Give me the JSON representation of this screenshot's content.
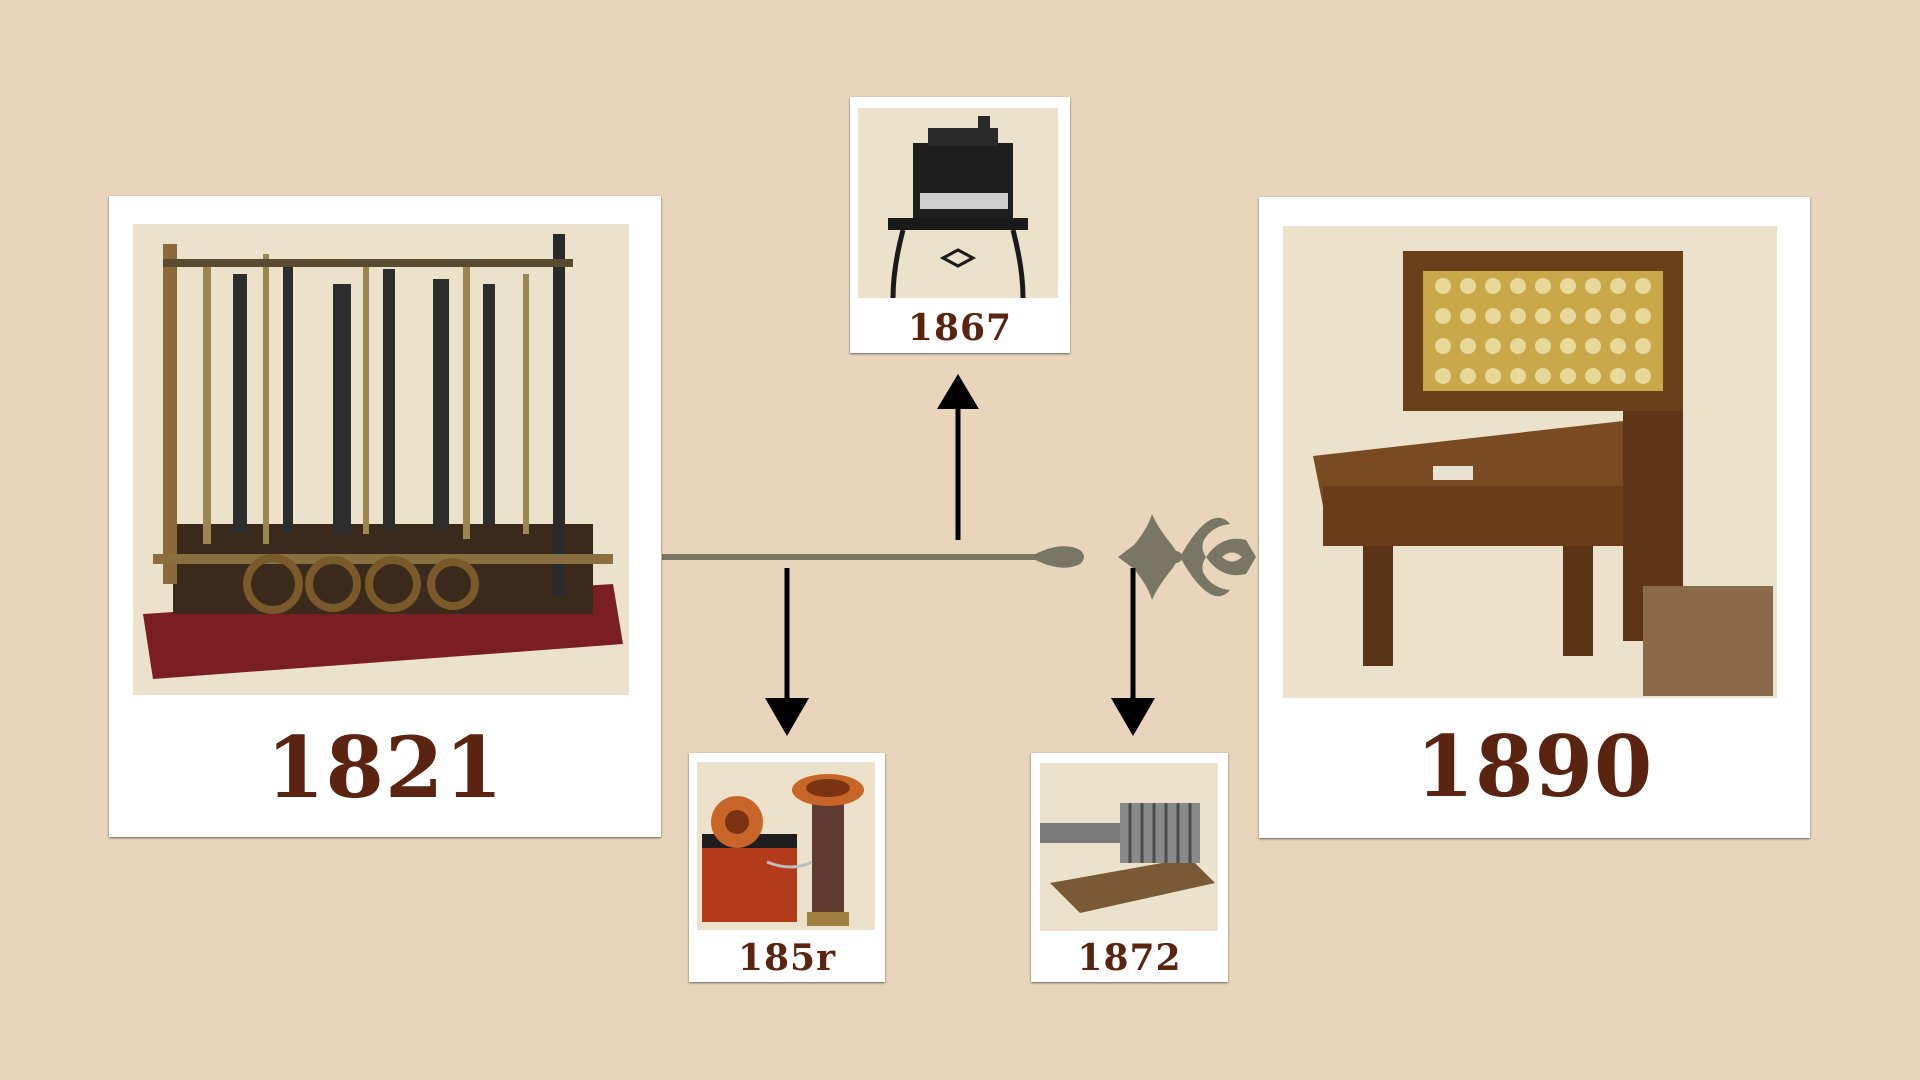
{
  "timeline": {
    "main_left": {
      "year": "1821",
      "image": "difference-engine-photo"
    },
    "main_right": {
      "year": "1890",
      "image": "tabulating-machine-photo"
    },
    "events": [
      {
        "year": "1867",
        "image": "typewriter-photo",
        "arrow_direction": "up"
      },
      {
        "year": "185r",
        "image": "telephone-photo",
        "arrow_direction": "down"
      },
      {
        "year": "1872",
        "image": "calculating-machine-photo",
        "arrow_direction": "down"
      }
    ]
  },
  "colors": {
    "background": "#e8d5bb",
    "year_text": "#5a2410",
    "timeline_line": "#7a7664",
    "arrow": "#000000",
    "card": "#ffffff"
  }
}
